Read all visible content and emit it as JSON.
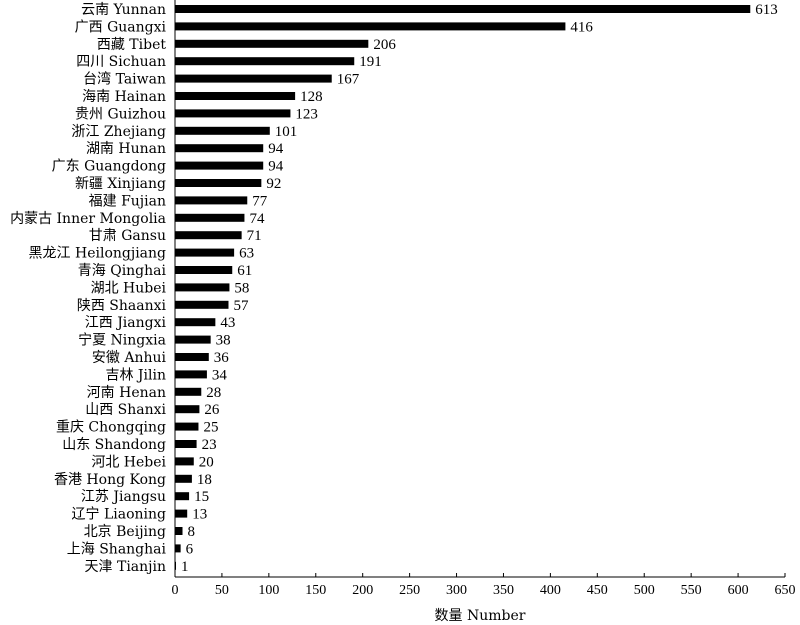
{
  "chart_data": {
    "type": "bar",
    "orientation": "horizontal",
    "categories": [
      "云南 Yunnan",
      "广西 Guangxi",
      "西藏 Tibet",
      "四川 Sichuan",
      "台湾 Taiwan",
      "海南 Hainan",
      "贵州 Guizhou",
      "浙江 Zhejiang",
      "湖南 Hunan",
      "广东 Guangdong",
      "新疆 Xinjiang",
      "福建 Fujian",
      "内蒙古 Inner Mongolia",
      "甘肃 Gansu",
      "黑龙江 Heilongjiang",
      "青海 Qinghai",
      "湖北 Hubei",
      "陕西 Shaanxi",
      "江西 Jiangxi",
      "宁夏 Ningxia",
      "安徽 Anhui",
      "吉林 Jilin",
      "河南 Henan",
      "山西 Shanxi",
      "重庆 Chongqing",
      "山东 Shandong",
      "河北 Hebei",
      "香港 Hong Kong",
      "江苏 Jiangsu",
      "辽宁 Liaoning",
      "北京 Beijing",
      "上海 Shanghai",
      "天津 Tianjin"
    ],
    "values": [
      613,
      416,
      206,
      191,
      167,
      128,
      123,
      101,
      94,
      94,
      92,
      77,
      74,
      71,
      63,
      61,
      58,
      57,
      43,
      38,
      36,
      34,
      28,
      26,
      25,
      23,
      20,
      18,
      15,
      13,
      8,
      6,
      1
    ],
    "xlabel": "数量 Number",
    "ylabel": "",
    "xlim": [
      0,
      650
    ],
    "xticks": [
      0,
      50,
      100,
      150,
      200,
      250,
      300,
      350,
      400,
      450,
      500,
      550,
      600,
      650
    ],
    "bar_color": "#000000",
    "grid": false,
    "legend": "none"
  }
}
